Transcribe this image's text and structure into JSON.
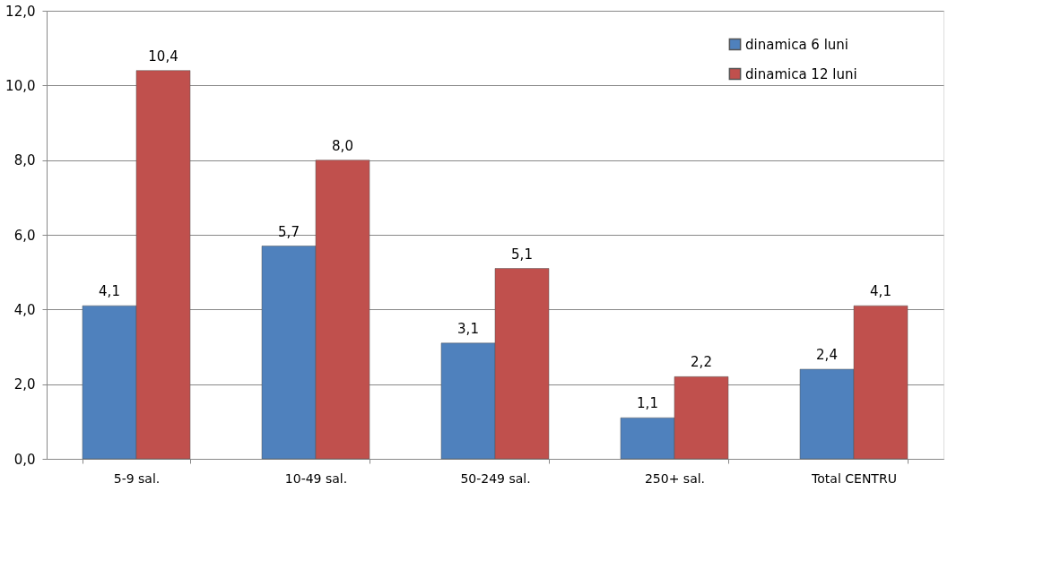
{
  "chart_data": {
    "type": "bar",
    "categories": [
      "5-9 sal.",
      "10-49 sal.",
      "50-249 sal.",
      "250+ sal.",
      "Total CENTRU"
    ],
    "series": [
      {
        "name": "dinamica 6 luni",
        "color": "#4f81bd",
        "values": [
          4.1,
          5.7,
          3.1,
          1.1,
          2.4
        ],
        "value_labels": [
          "4,1",
          "5,7",
          "3,1",
          "1,1",
          "2,4"
        ]
      },
      {
        "name": "dinamica 12 luni",
        "color": "#c0504d",
        "values": [
          10.4,
          8.0,
          5.1,
          2.2,
          4.1
        ],
        "value_labels": [
          "10,4",
          "8,0",
          "5,1",
          "2,2",
          "4,1"
        ]
      }
    ],
    "ylim": [
      0,
      12
    ],
    "yticks": [
      {
        "value": 0,
        "label": "0,0"
      },
      {
        "value": 2,
        "label": "2,0"
      },
      {
        "value": 4,
        "label": "4,0"
      },
      {
        "value": 6,
        "label": "6,0"
      },
      {
        "value": 8,
        "label": "8,0"
      },
      {
        "value": 10,
        "label": "10,0"
      },
      {
        "value": 12,
        "label": "12,0"
      }
    ],
    "grid": "y",
    "legend": "top right"
  }
}
